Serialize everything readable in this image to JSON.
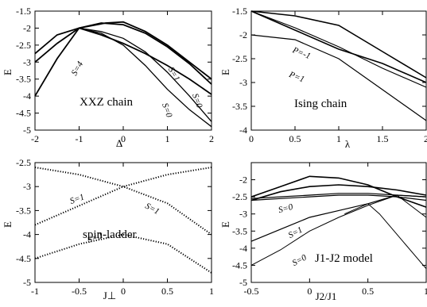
{
  "chart_data": [
    {
      "type": "line",
      "title": "XXZ chain",
      "xlabel": "Δ",
      "ylabel": "E",
      "xlim": [
        -2,
        2
      ],
      "ylim": [
        -5,
        -1.5
      ],
      "xticks": [
        "-2",
        "-1",
        "0",
        "1",
        "2"
      ],
      "yticks": [
        "-5",
        "-4.5",
        "-4",
        "-3.5",
        "-3",
        "-2.5",
        "-2",
        "-1.5"
      ],
      "annotations": [
        "S=1",
        "S=4",
        "S=0",
        "S=0"
      ],
      "series": [
        {
          "x": [
            -2,
            -1.5,
            -1,
            -0.4,
            0,
            0.5,
            1,
            1.5,
            2
          ],
          "values": [
            -2.75,
            -2.2,
            -2.0,
            -1.85,
            -1.82,
            -2.1,
            -2.5,
            -3.0,
            -3.5
          ]
        },
        {
          "x": [
            -2,
            -1.5,
            -1,
            -0.5,
            0,
            0.5,
            1,
            1.5,
            2
          ],
          "values": [
            -3.0,
            -2.45,
            -2.0,
            -1.85,
            -1.9,
            -2.15,
            -2.55,
            -3.05,
            -3.65
          ]
        },
        {
          "x": [
            -2,
            -1.5,
            -1,
            -0.5,
            0,
            0.5,
            1,
            1.5,
            2
          ],
          "values": [
            -4.0,
            -2.9,
            -2.0,
            -2.2,
            -2.45,
            -2.75,
            -3.1,
            -3.5,
            -3.95
          ]
        },
        {
          "x": [
            -1,
            -0.5,
            0,
            0.5,
            1,
            1.5,
            2
          ],
          "values": [
            -2.0,
            -2.1,
            -2.3,
            -2.7,
            -3.3,
            -4.0,
            -4.75
          ]
        },
        {
          "x": [
            -1,
            -0.5,
            0,
            0.5,
            1,
            1.5,
            2
          ],
          "values": [
            -2.0,
            -2.15,
            -2.5,
            -3.1,
            -3.8,
            -4.4,
            -4.9
          ]
        }
      ]
    },
    {
      "type": "line",
      "title": "Ising chain",
      "xlabel": "λ",
      "ylabel": "E",
      "xlim": [
        0,
        2
      ],
      "ylim": [
        -4,
        -1.5
      ],
      "xticks": [
        "0",
        "0.5",
        "1",
        "1.5",
        "2"
      ],
      "yticks": [
        "-4",
        "-3.5",
        "-3",
        "-2.5",
        "-2",
        "-1.5"
      ],
      "annotations": [
        "P=-1",
        "P=1"
      ],
      "series": [
        {
          "x": [
            0,
            0.5,
            1,
            1.5,
            2
          ],
          "values": [
            -1.5,
            -1.6,
            -1.8,
            -2.35,
            -2.9
          ]
        },
        {
          "x": [
            0,
            0.5,
            1,
            1.5,
            2
          ],
          "values": [
            -1.5,
            -1.9,
            -2.3,
            -2.6,
            -3.0
          ]
        },
        {
          "x": [
            0,
            0.5,
            1,
            1.5,
            2
          ],
          "values": [
            -1.5,
            -1.85,
            -2.25,
            -2.7,
            -3.1
          ]
        },
        {
          "x": [
            0,
            0.5,
            1,
            1.5,
            2
          ],
          "values": [
            -2.0,
            -2.1,
            -2.5,
            -3.15,
            -3.8
          ]
        }
      ]
    },
    {
      "type": "scatter",
      "title": "spin-ladder",
      "xlabel": "J⊥",
      "ylabel": "E",
      "xlim": [
        -1,
        1
      ],
      "ylim": [
        -5,
        -2.5
      ],
      "xticks": [
        "-1",
        "-0.5",
        "0",
        "0.5",
        "1"
      ],
      "yticks": [
        "-5",
        "-4.5",
        "-4",
        "-3.5",
        "-3",
        "-2.5"
      ],
      "annotations": [
        "S=1",
        "S=1",
        "S=0"
      ],
      "series": [
        {
          "x": [
            -1,
            -0.5,
            0,
            0.5,
            1
          ],
          "values": [
            -2.6,
            -2.75,
            -3.0,
            -3.35,
            -4.0
          ]
        },
        {
          "x": [
            -1,
            -0.5,
            0,
            0.5,
            1
          ],
          "values": [
            -3.8,
            -3.4,
            -3.0,
            -2.75,
            -2.6
          ]
        },
        {
          "x": [
            -1,
            -0.5,
            0,
            0.5,
            1
          ],
          "values": [
            -4.5,
            -4.2,
            -4.0,
            -4.2,
            -4.8
          ]
        }
      ]
    },
    {
      "type": "line",
      "title": "J1-J2 model",
      "xlabel": "J2/J1",
      "ylabel": "E",
      "xlim": [
        -0.5,
        1
      ],
      "ylim": [
        -5,
        -1.5
      ],
      "xticks": [
        "-0.5",
        "0",
        "0.5",
        "1"
      ],
      "yticks": [
        "-5",
        "-4.5",
        "-4",
        "-3.5",
        "-3",
        "-2.5",
        "-2"
      ],
      "annotations": [
        "S=0",
        "S=1",
        "S=0"
      ],
      "series": [
        {
          "x": [
            -0.5,
            -0.25,
            0,
            0.25,
            0.5,
            0.75,
            1
          ],
          "values": [
            -2.5,
            -2.2,
            -1.9,
            -1.95,
            -2.15,
            -2.5,
            -2.8
          ]
        },
        {
          "x": [
            -0.5,
            -0.25,
            0,
            0.25,
            0.5,
            0.75,
            1
          ],
          "values": [
            -2.6,
            -2.35,
            -2.2,
            -2.15,
            -2.2,
            -2.3,
            -2.45
          ]
        },
        {
          "x": [
            -0.5,
            -0.25,
            0,
            0.25,
            0.5,
            0.75,
            1
          ],
          "values": [
            -2.55,
            -2.5,
            -2.45,
            -2.4,
            -2.4,
            -2.45,
            -2.5
          ]
        },
        {
          "x": [
            -0.5,
            -0.25,
            0,
            0.25,
            0.5,
            0.75,
            1
          ],
          "values": [
            -2.6,
            -2.55,
            -2.5,
            -2.45,
            -2.45,
            -2.5,
            -2.6
          ]
        },
        {
          "x": [
            -0.5,
            -0.25,
            0,
            0.25,
            0.5,
            0.75,
            1
          ],
          "values": [
            -3.8,
            -3.45,
            -3.1,
            -2.9,
            -2.7,
            -2.45,
            -2.5
          ]
        },
        {
          "x": [
            -0.5,
            -0.25,
            0,
            0.25,
            0.5,
            0.75,
            1
          ],
          "values": [
            -4.5,
            -4.05,
            -3.5,
            -3.1,
            -2.75,
            -2.45,
            -3.1
          ]
        },
        {
          "x": [
            0.3,
            0.5,
            0.6,
            0.75,
            1
          ],
          "values": [
            -3.0,
            -2.7,
            -3.0,
            -3.6,
            -4.6
          ]
        }
      ]
    }
  ]
}
